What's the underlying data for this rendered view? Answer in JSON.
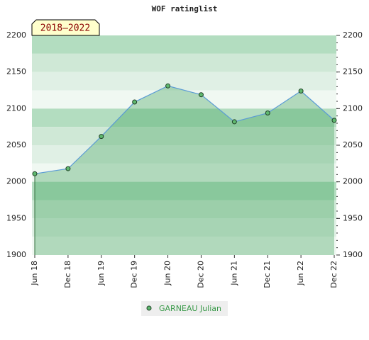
{
  "chart_data": {
    "type": "line",
    "title": "WOF ratinglist",
    "period_label": "2018–2022",
    "categories": [
      "Jun 18",
      "Dec 18",
      "Jun 19",
      "Dec 19",
      "Jun 20",
      "Dec 20",
      "Jun 21",
      "Dec 21",
      "Jun 22",
      "Dec 22"
    ],
    "series": [
      {
        "name": "GARNEAU Julian",
        "color": "#5b9bd5",
        "values": [
          2011,
          2018,
          2062,
          2109,
          2131,
          2119,
          2082,
          2094,
          2124,
          2084
        ]
      }
    ],
    "ylim": [
      1900,
      2200
    ],
    "yticks": [
      1900,
      1950,
      2000,
      2050,
      2100,
      2150,
      2200
    ]
  }
}
